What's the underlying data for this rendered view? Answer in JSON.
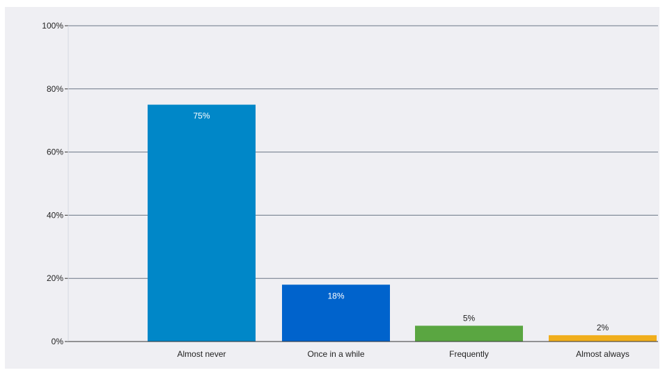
{
  "chart_data": {
    "type": "bar",
    "categories": [
      "Almost never",
      "Once in a while",
      "Frequently",
      "Almost always"
    ],
    "values": [
      75,
      18,
      5,
      2
    ],
    "value_labels": [
      "75%",
      "18%",
      "5%",
      "2%"
    ],
    "colors": [
      "#0087c8",
      "#0063cc",
      "#5aa641",
      "#f0ae1c"
    ],
    "value_label_colors": [
      "#ffffff",
      "#ffffff",
      "#222222",
      "#222222"
    ],
    "ylim": [
      0,
      100
    ],
    "yticks": [
      0,
      20,
      40,
      60,
      80,
      100
    ],
    "ytick_labels": [
      "0%",
      "20%",
      "40%",
      "60%",
      "80%",
      "100%"
    ],
    "grid": true,
    "plot_background": "#efeff3",
    "gridline_color": "#6a7585"
  }
}
